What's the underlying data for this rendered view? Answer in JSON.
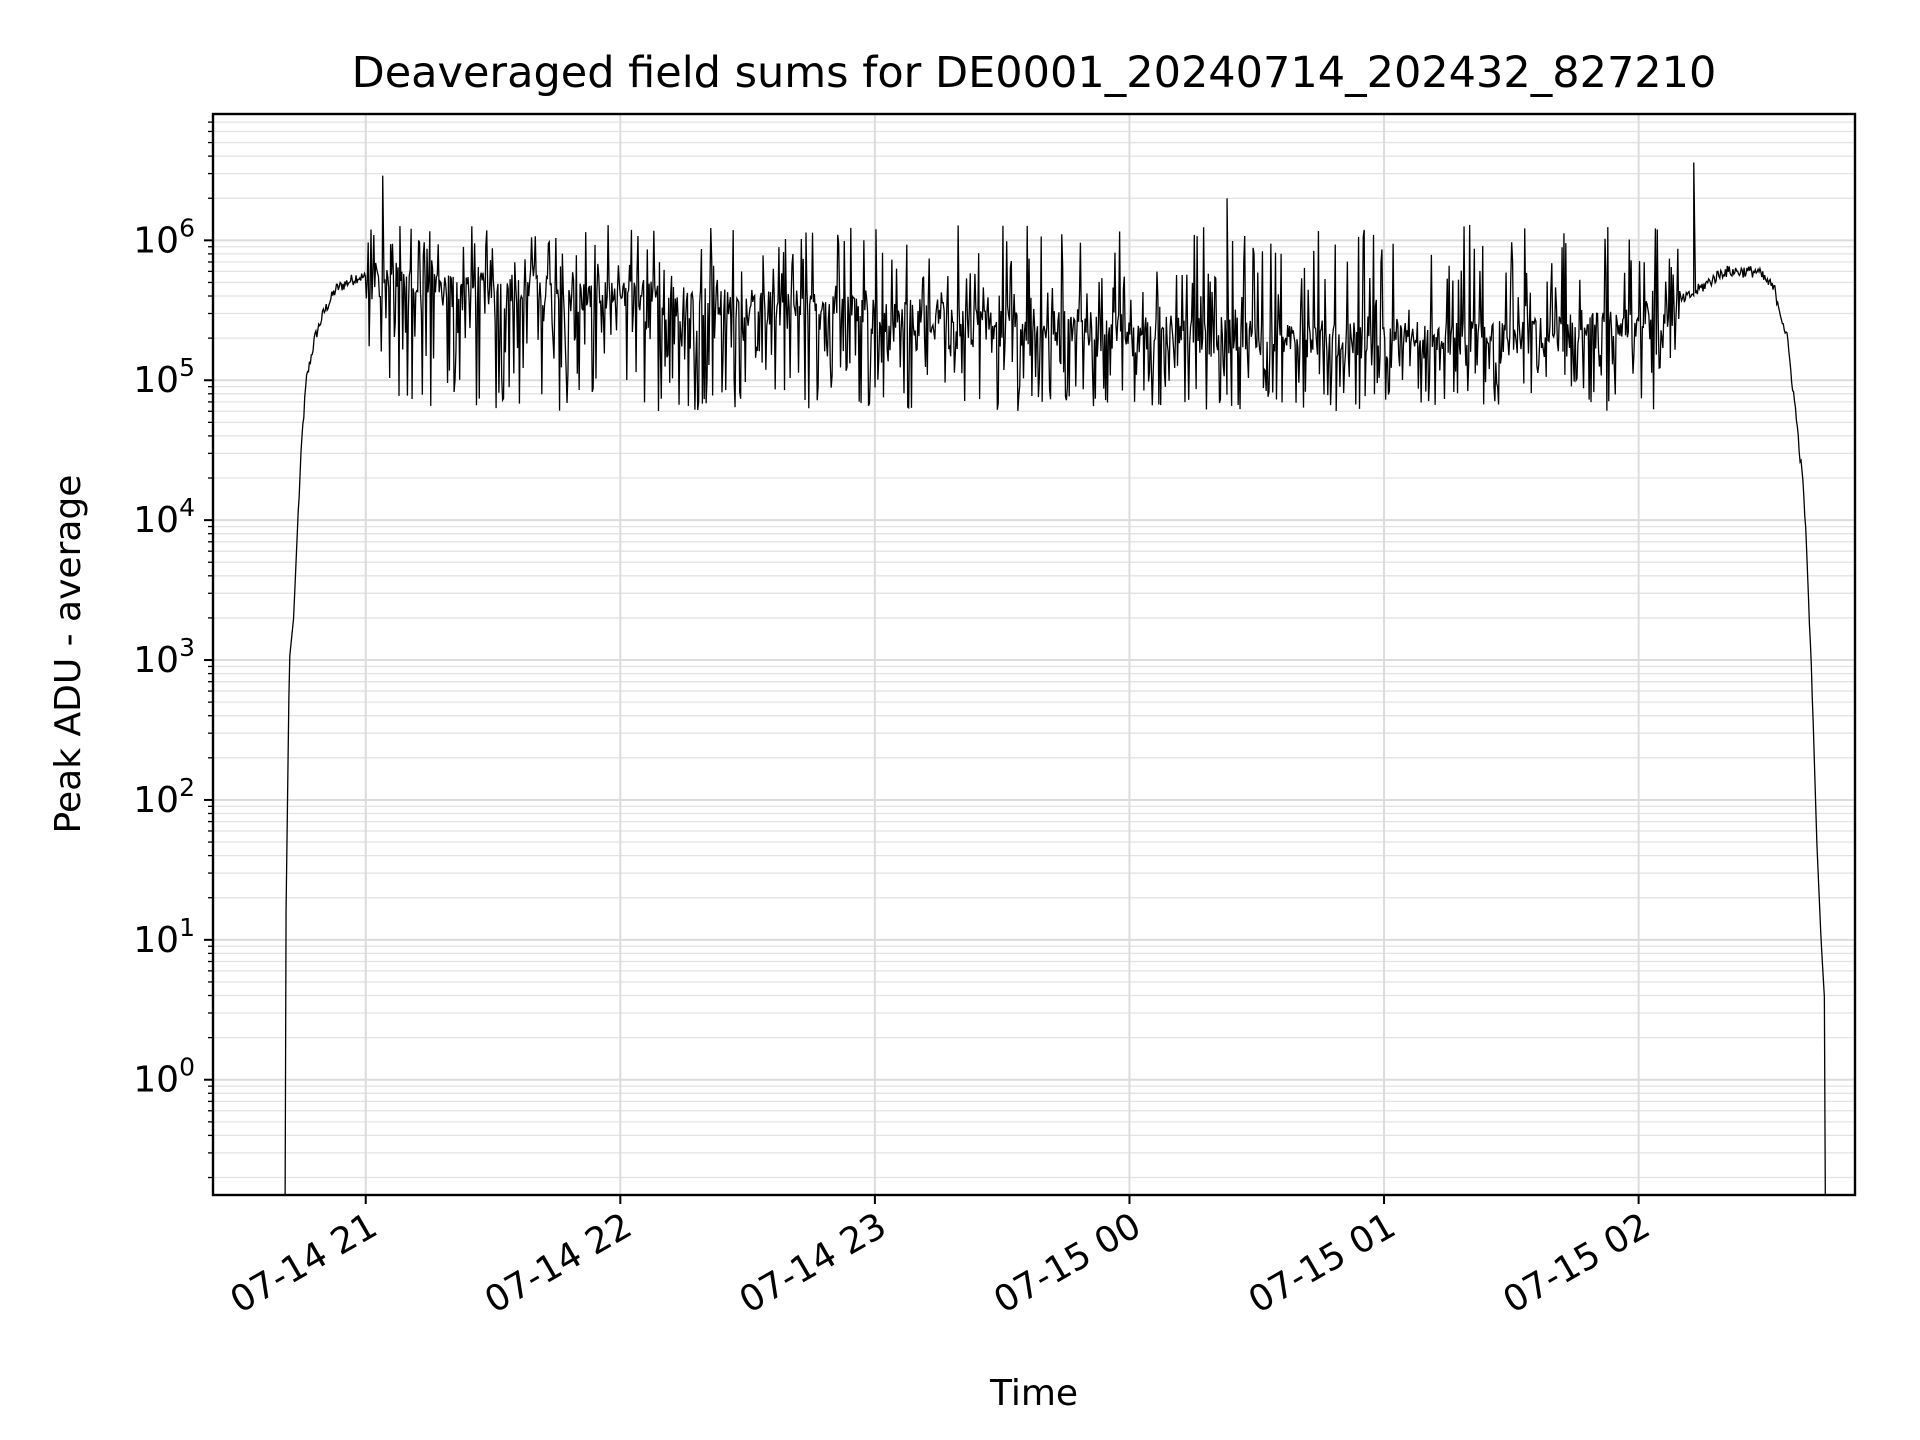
{
  "chart_data": {
    "type": "line",
    "title": "Deaveraged field sums for DE0001_20240714_202432_827210",
    "xlabel": "Time",
    "ylabel": "Peak ADU - average",
    "x_scale": "time",
    "y_scale": "log",
    "xlim": [
      "2024-07-14 20:24",
      "2024-07-15 02:51"
    ],
    "ylim": [
      0.15,
      8000000
    ],
    "x_ticks": [
      {
        "value": "2024-07-14 21:00",
        "label": "07-14 21"
      },
      {
        "value": "2024-07-14 22:00",
        "label": "07-14 22"
      },
      {
        "value": "2024-07-14 23:00",
        "label": "07-14 23"
      },
      {
        "value": "2024-07-15 00:00",
        "label": "07-15 00"
      },
      {
        "value": "2024-07-15 01:00",
        "label": "07-15 01"
      },
      {
        "value": "2024-07-15 02:00",
        "label": "07-15 02"
      }
    ],
    "y_ticks": [
      {
        "value": 1,
        "base": "10",
        "exp": "0"
      },
      {
        "value": 10,
        "base": "10",
        "exp": "1"
      },
      {
        "value": 100,
        "base": "10",
        "exp": "2"
      },
      {
        "value": 1000,
        "base": "10",
        "exp": "3"
      },
      {
        "value": 10000,
        "base": "10",
        "exp": "4"
      },
      {
        "value": 100000,
        "base": "10",
        "exp": "5"
      },
      {
        "value": 1000000,
        "base": "10",
        "exp": "6"
      }
    ],
    "grid": true,
    "line_color": "#000000",
    "envelope": [
      {
        "t": "2024-07-14 20:41",
        "y": 0.15
      },
      {
        "t": "2024-07-14 20:41",
        "y": 5
      },
      {
        "t": "2024-07-14 20:42",
        "y": 1000
      },
      {
        "t": "2024-07-14 20:43",
        "y": 2000
      },
      {
        "t": "2024-07-14 20:44",
        "y": 10000
      },
      {
        "t": "2024-07-14 20:45",
        "y": 40000
      },
      {
        "t": "2024-07-14 20:46",
        "y": 100000
      },
      {
        "t": "2024-07-14 20:48",
        "y": 200000
      },
      {
        "t": "2024-07-14 20:50",
        "y": 300000
      },
      {
        "t": "2024-07-14 20:53",
        "y": 450000
      },
      {
        "t": "2024-07-14 20:58",
        "y": 550000
      },
      {
        "t": "2024-07-14 21:10",
        "y": 500000
      },
      {
        "t": "2024-07-14 21:30",
        "y": 450000
      },
      {
        "t": "2024-07-14 22:00",
        "y": 400000
      },
      {
        "t": "2024-07-14 23:00",
        "y": 300000
      },
      {
        "t": "2024-07-15 00:00",
        "y": 230000
      },
      {
        "t": "2024-07-15 01:00",
        "y": 200000
      },
      {
        "t": "2024-07-15 01:30",
        "y": 210000
      },
      {
        "t": "2024-07-15 02:00",
        "y": 250000
      },
      {
        "t": "2024-07-15 02:12",
        "y": 400000
      },
      {
        "t": "2024-07-15 02:20",
        "y": 600000
      },
      {
        "t": "2024-07-15 02:28",
        "y": 600000
      },
      {
        "t": "2024-07-15 02:32",
        "y": 450000
      },
      {
        "t": "2024-07-15 02:35",
        "y": 200000
      },
      {
        "t": "2024-07-15 02:37",
        "y": 60000
      },
      {
        "t": "2024-07-15 02:39",
        "y": 15000
      },
      {
        "t": "2024-07-15 02:40",
        "y": 3000
      },
      {
        "t": "2024-07-15 02:41",
        "y": 500
      },
      {
        "t": "2024-07-15 02:42",
        "y": 50
      },
      {
        "t": "2024-07-15 02:43",
        "y": 10
      },
      {
        "t": "2024-07-15 02:44",
        "y": 3
      },
      {
        "t": "2024-07-15 02:44",
        "y": 0.15
      }
    ],
    "fluctuation_band": {
      "start": "2024-07-14 21:00",
      "end": "2024-07-15 02:10",
      "typical_min": 60000,
      "typical_max": 1300000
    },
    "spikes": [
      {
        "t": "2024-07-14 21:04",
        "y": 2900000
      },
      {
        "t": "2024-07-15 00:23",
        "y": 2000000
      },
      {
        "t": "2024-07-15 02:13",
        "y": 3600000
      }
    ]
  }
}
